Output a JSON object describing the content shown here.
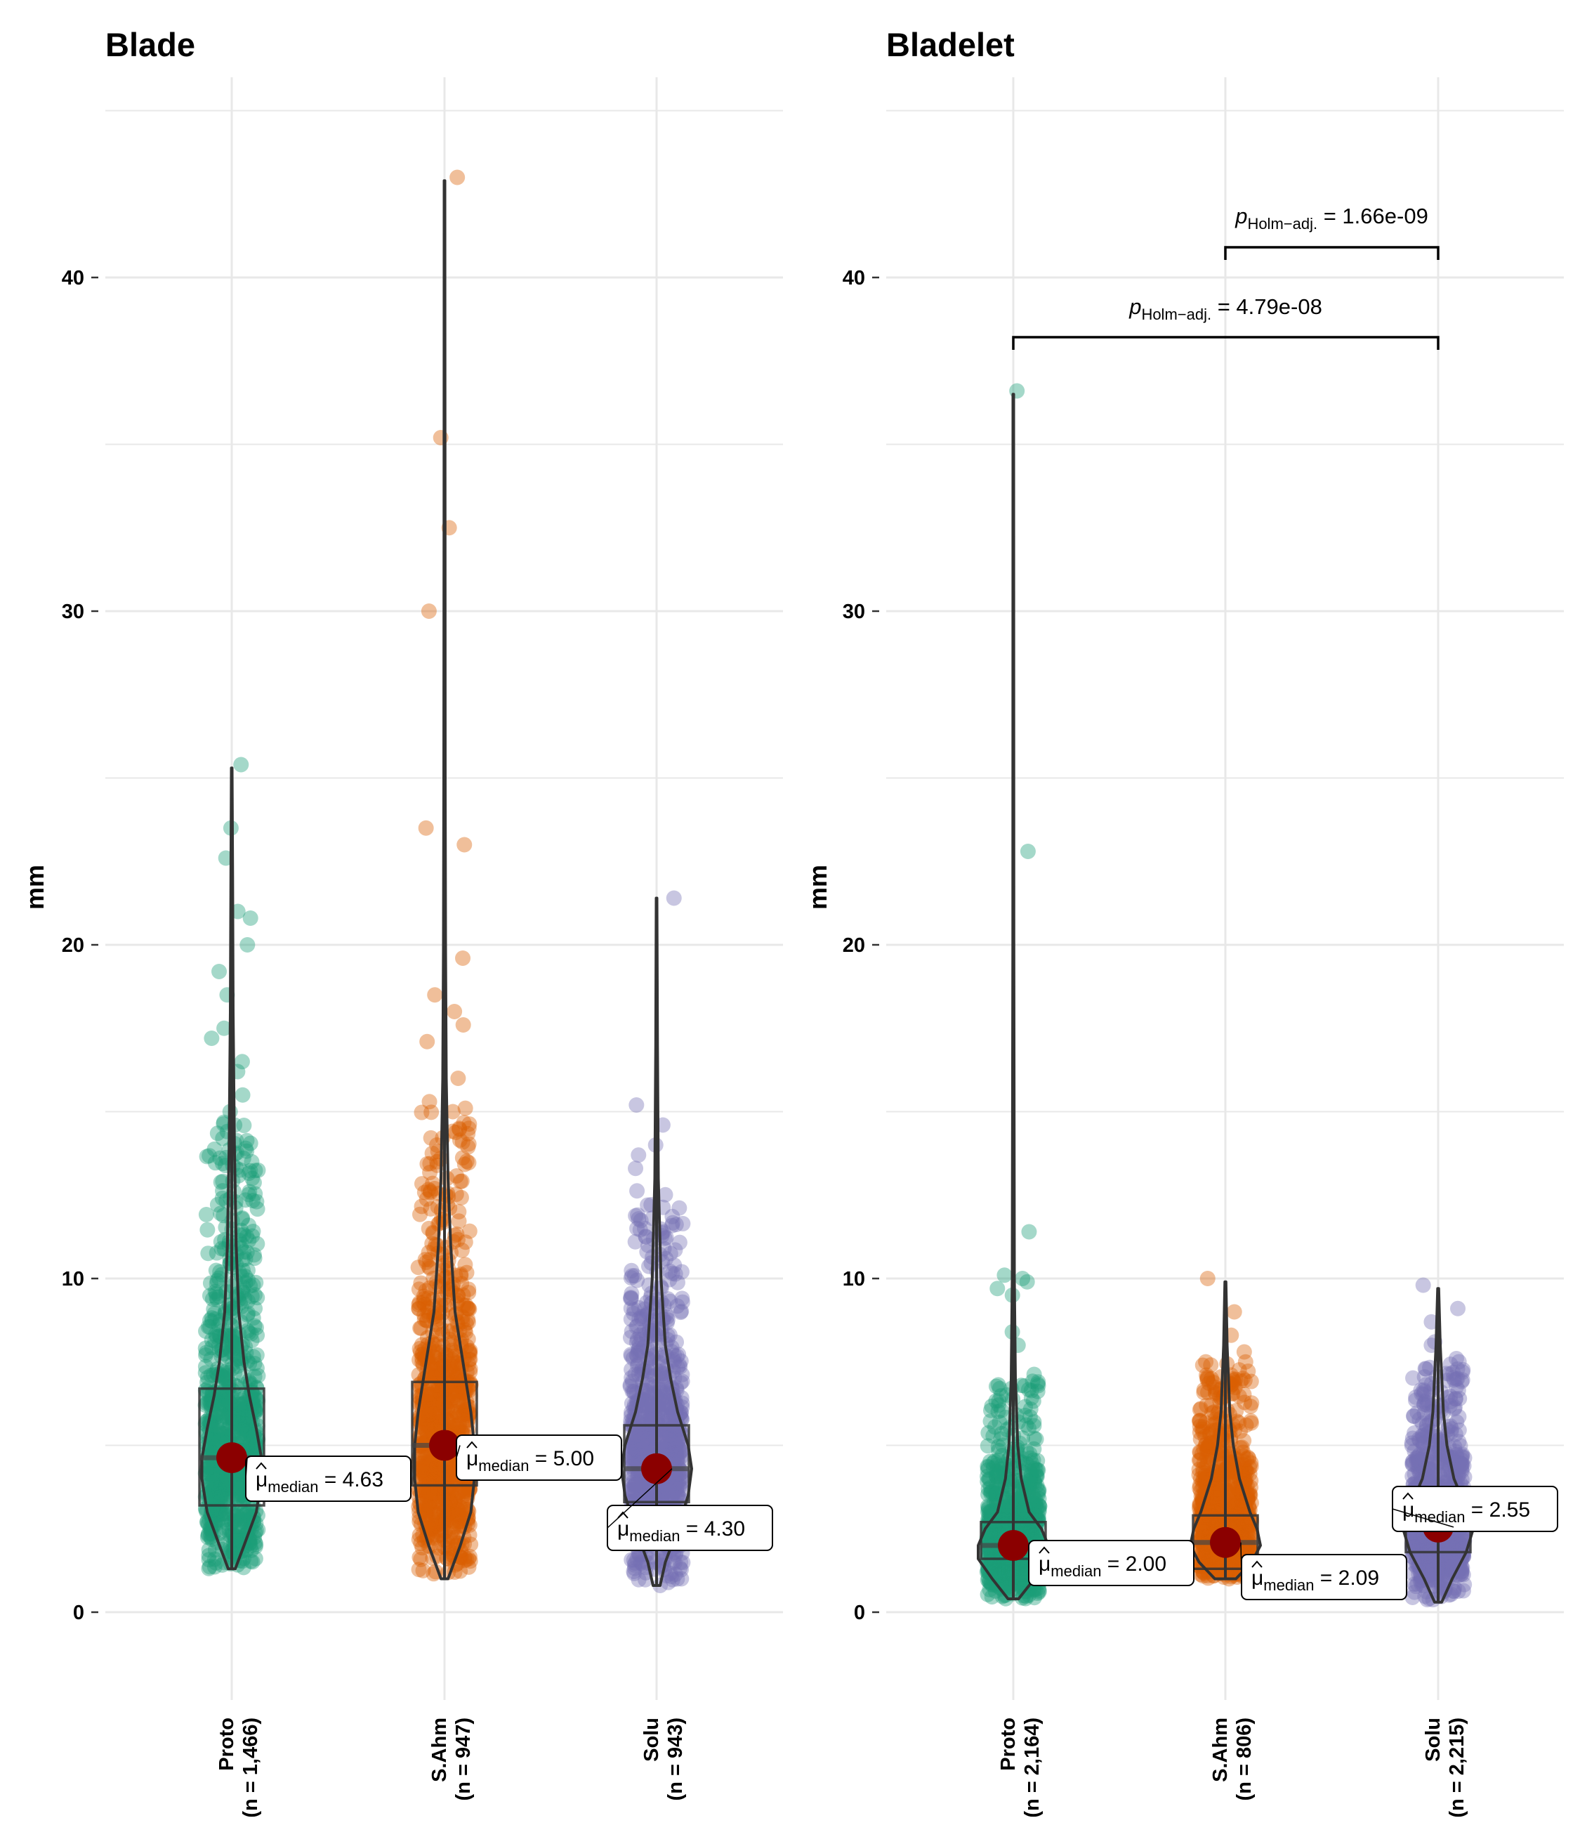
{
  "chart_data": [
    {
      "type": "violin",
      "title": "Blade",
      "ylabel": "mm",
      "ylim": [
        -2,
        46
      ],
      "yticks": [
        0,
        10,
        20,
        30,
        40
      ],
      "grid": true,
      "groups": [
        {
          "name": "Proto",
          "n_label": "(n = 1,466)",
          "color": "#1B9E77",
          "box": {
            "q1": 3.2,
            "median": 4.63,
            "q3": 6.7,
            "min": 1.3,
            "max": 25.3
          },
          "median_label": "4.63",
          "violin": [
            [
              1.3,
              0.02
            ],
            [
              2,
              0.07
            ],
            [
              3,
              0.14
            ],
            [
              4,
              0.17
            ],
            [
              4.6,
              0.17
            ],
            [
              5.5,
              0.14
            ],
            [
              6.5,
              0.1
            ],
            [
              7.5,
              0.07
            ],
            [
              9,
              0.04
            ],
            [
              11,
              0.025
            ],
            [
              14,
              0.015
            ],
            [
              18,
              0.008
            ],
            [
              22,
              0.005
            ],
            [
              25.3,
              0.002
            ]
          ],
          "outliers": [
            25.4,
            23.5,
            22.6,
            21.0,
            20.8,
            20.0,
            19.2,
            18.5,
            17.5,
            17.2,
            16.5,
            16.2,
            15.5,
            15.0,
            14.6,
            14.2,
            13.5,
            13.0,
            12.6
          ]
        },
        {
          "name": "S.Ahm",
          "n_label": "(n = 947)",
          "color": "#D95F02",
          "box": {
            "q1": 3.8,
            "median": 5.0,
            "q3": 6.9,
            "min": 1.0,
            "max": 42.9
          },
          "median_label": "5.00",
          "violin": [
            [
              1,
              0.02
            ],
            [
              2,
              0.09
            ],
            [
              3,
              0.15
            ],
            [
              4,
              0.17
            ],
            [
              5,
              0.17
            ],
            [
              6,
              0.15
            ],
            [
              7,
              0.12
            ],
            [
              8,
              0.09
            ],
            [
              9,
              0.06
            ],
            [
              11,
              0.035
            ],
            [
              13,
              0.02
            ],
            [
              16,
              0.01
            ],
            [
              20,
              0.006
            ],
            [
              25,
              0.004
            ],
            [
              33,
              0.003
            ],
            [
              42.9,
              0.002
            ]
          ],
          "outliers": [
            43.0,
            35.2,
            32.5,
            30.0,
            23.5,
            23.0,
            19.6,
            18.5,
            18.0,
            17.6,
            17.1,
            16.0,
            15.3,
            15.0,
            14.5,
            14.0,
            13.5,
            13.0,
            12.5,
            12.0
          ]
        },
        {
          "name": "Solu",
          "n_label": "(n = 943)",
          "color": "#7570B3",
          "box": {
            "q1": 3.3,
            "median": 4.3,
            "q3": 5.6,
            "min": 0.8,
            "max": 21.4
          },
          "median_label": "4.30",
          "violin": [
            [
              0.8,
              0.02
            ],
            [
              1.5,
              0.05
            ],
            [
              2.5,
              0.12
            ],
            [
              3.5,
              0.18
            ],
            [
              4.3,
              0.2
            ],
            [
              5,
              0.18
            ],
            [
              6,
              0.12
            ],
            [
              7,
              0.08
            ],
            [
              8,
              0.05
            ],
            [
              10,
              0.025
            ],
            [
              13,
              0.01
            ],
            [
              17,
              0.005
            ],
            [
              21.4,
              0.002
            ]
          ],
          "outliers": [
            21.4,
            15.2,
            14.6,
            14.0,
            13.7,
            13.3,
            12.2,
            11.5,
            11.2,
            10.8,
            10.5
          ]
        }
      ]
    },
    {
      "type": "violin",
      "title": "Bladelet",
      "ylabel": "mm",
      "ylim": [
        -2,
        46
      ],
      "yticks": [
        0,
        10,
        20,
        30,
        40
      ],
      "grid": true,
      "groups": [
        {
          "name": "Proto",
          "n_label": "(n = 2,164)",
          "color": "#1B9E77",
          "box": {
            "q1": 1.6,
            "median": 2.0,
            "q3": 2.7,
            "min": 0.4,
            "max": 36.5
          },
          "median_label": "2.00",
          "violin": [
            [
              0.4,
              0.03
            ],
            [
              1,
              0.12
            ],
            [
              1.6,
              0.2
            ],
            [
              2.0,
              0.2
            ],
            [
              2.5,
              0.16
            ],
            [
              3,
              0.09
            ],
            [
              4,
              0.045
            ],
            [
              5,
              0.025
            ],
            [
              7,
              0.012
            ],
            [
              10,
              0.006
            ],
            [
              20,
              0.003
            ],
            [
              36.5,
              0.002
            ]
          ],
          "outliers": [
            36.6,
            22.8,
            11.4,
            10.1,
            10.0,
            9.9,
            9.7,
            9.5,
            8.4,
            8.0
          ]
        },
        {
          "name": "S.Ahm",
          "n_label": "(n = 806)",
          "color": "#D95F02",
          "box": {
            "q1": 1.3,
            "median": 2.09,
            "q3": 2.9,
            "min": 1.0,
            "max": 9.9
          },
          "median_label": "2.09",
          "violin": [
            [
              1,
              0.06
            ],
            [
              1.5,
              0.15
            ],
            [
              2,
              0.2
            ],
            [
              2.5,
              0.18
            ],
            [
              3,
              0.14
            ],
            [
              4,
              0.08
            ],
            [
              5,
              0.045
            ],
            [
              6,
              0.025
            ],
            [
              8,
              0.01
            ],
            [
              9.9,
              0.003
            ]
          ],
          "outliers": [
            10.0,
            9.0,
            8.3,
            7.8,
            7.5,
            7.0,
            6.2,
            6.0
          ]
        },
        {
          "name": "Solu",
          "n_label": "(n = 2,215)",
          "color": "#7570B3",
          "box": {
            "q1": 1.8,
            "median": 2.55,
            "q3": 2.9,
            "min": 0.3,
            "max": 9.7
          },
          "median_label": "2.55",
          "violin": [
            [
              0.3,
              0.02
            ],
            [
              1,
              0.08
            ],
            [
              1.8,
              0.16
            ],
            [
              2.5,
              0.2
            ],
            [
              3,
              0.17
            ],
            [
              4,
              0.09
            ],
            [
              5,
              0.05
            ],
            [
              6,
              0.03
            ],
            [
              8,
              0.012
            ],
            [
              9.7,
              0.003
            ]
          ],
          "outliers": [
            9.8,
            9.1,
            8.7,
            8.1,
            8.0,
            7.6,
            7.3,
            7.0,
            6.6
          ]
        }
      ],
      "comparisons": [
        {
          "from": "Proto",
          "to": "Solu",
          "p_value": "4.79e-08",
          "p_label": "p",
          "p_sub": "Holm−adj."
        },
        {
          "from": "S.Ahm",
          "to": "Solu",
          "p_value": "1.66e-09",
          "p_label": "p",
          "p_sub": "Holm−adj."
        }
      ]
    }
  ],
  "median_symbol": "μ",
  "median_sub": "median"
}
